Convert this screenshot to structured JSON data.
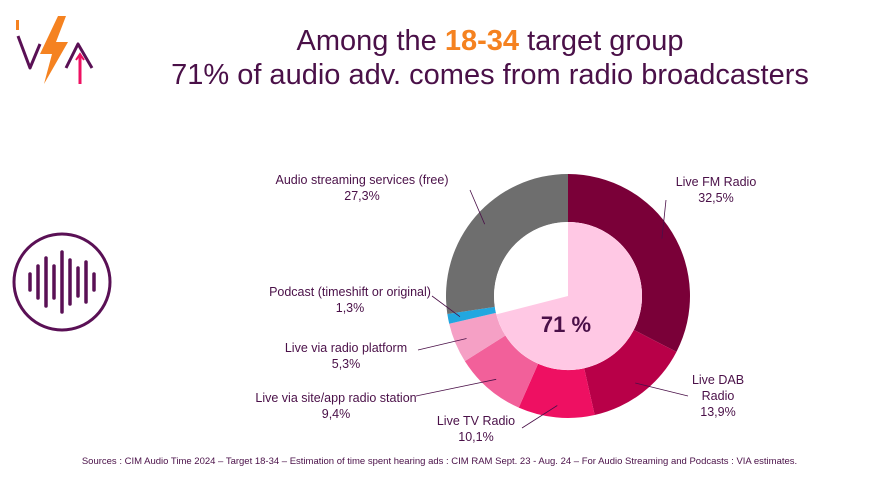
{
  "header": {
    "title_line1_pre": "Among the ",
    "title_highlight": "18-34",
    "title_line1_post": " target group",
    "title_line2": "71% of audio adv. comes from radio broadcasters"
  },
  "source_note": "Sources : CIM Audio Time 2024 – Target 18-34 – Estimation of time spent hearing ads : CIM RAM Sept. 23 - Aug. 24 – For Audio Streaming and Podcasts : VIA estimates.",
  "colors": {
    "title": "#4a1048",
    "accent": "#f58220",
    "live_fm": "#7a0038",
    "live_dab": "#b80048",
    "live_tv": "#ee1062",
    "site_app": "#f2609a",
    "radio_platform": "#f5a0c5",
    "podcast": "#22a7e0",
    "streaming": "#6e6e6e",
    "inner_radio": "#ffc8e4"
  },
  "chart_data": {
    "type": "pie",
    "title": "",
    "center_label": "71 %",
    "inner_ring": {
      "label": "71 %",
      "value": 71
    },
    "slices": [
      {
        "name": "Live FM Radio",
        "value": 32.5,
        "label": "32,5%",
        "color": "#7a0038"
      },
      {
        "name": "Live DAB Radio",
        "value": 13.9,
        "label": "13,9%",
        "color": "#b80048"
      },
      {
        "name": "Live TV Radio",
        "value": 10.1,
        "label": "10,1%",
        "color": "#ee1062"
      },
      {
        "name": "Live via site/app radio station",
        "value": 9.4,
        "label": "9,4%",
        "color": "#f2609a"
      },
      {
        "name": "Live via radio platform",
        "value": 5.3,
        "label": "5,3%",
        "color": "#f5a0c5"
      },
      {
        "name": "Podcast (timeshift or original)",
        "value": 1.3,
        "label": "1,3%",
        "color": "#22a7e0"
      },
      {
        "name": "Audio streaming services (free)",
        "value": 27.3,
        "label": "27,3%",
        "color": "#6e6e6e"
      }
    ]
  }
}
